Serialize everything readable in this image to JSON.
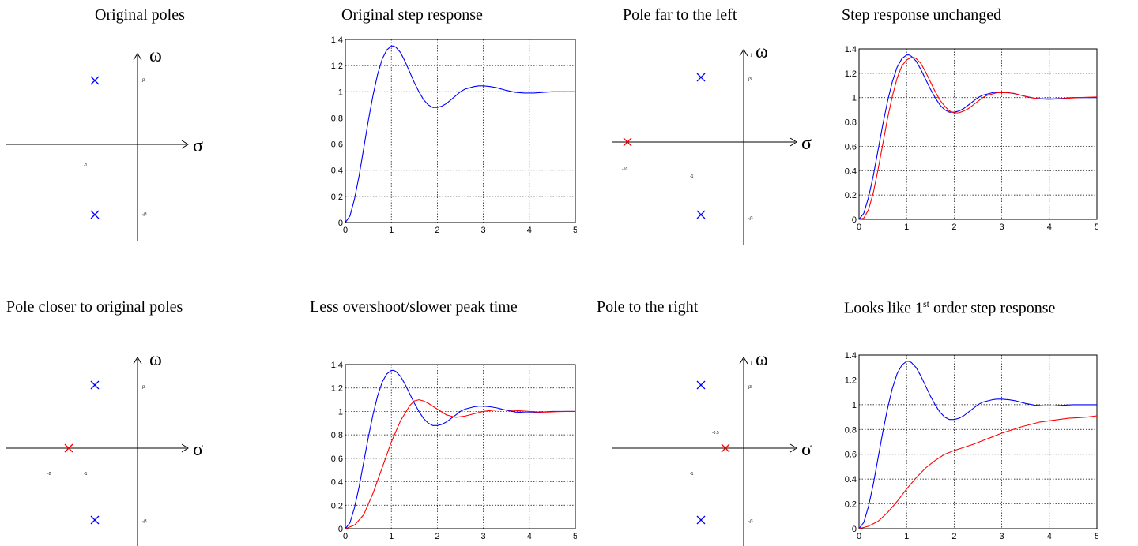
{
  "titles": {
    "t1": "Original poles",
    "t2": "Original step response",
    "t3": "Pole far to the left",
    "t4": "Step response unchanged",
    "t5": "Pole closer to original poles",
    "t6": "Less overshoot/slower peak time",
    "t7": "Pole to the right",
    "t8_pre": "Looks like 1",
    "t8_sup": "st",
    "t8_post": " order step response"
  },
  "colors": {
    "blue": "#0000ff",
    "red": "#ff0000",
    "axis": "#000000",
    "grid": "#000000"
  },
  "pole_plots": [
    {
      "id": "pp1",
      "sigma_symbol": "σ",
      "omega_symbol": "ω",
      "omega_tick": "j",
      "labels": [
        "j3",
        "-j3",
        "-1"
      ],
      "poles": [
        {
          "re": -1,
          "im": 3,
          "color": "blue"
        },
        {
          "re": -1,
          "im": -3,
          "color": "blue"
        }
      ]
    },
    {
      "id": "pp2",
      "sigma_symbol": "σ",
      "omega_symbol": "ω",
      "omega_tick": "j",
      "labels": [
        "j3",
        "-j3",
        "-1",
        "-10"
      ],
      "poles": [
        {
          "re": -1,
          "im": 3,
          "color": "blue"
        },
        {
          "re": -1,
          "im": -3,
          "color": "blue"
        },
        {
          "re": -10,
          "im": 0,
          "color": "red"
        }
      ]
    },
    {
      "id": "pp3",
      "sigma_symbol": "σ",
      "omega_symbol": "ω",
      "omega_tick": "j",
      "labels": [
        "j3",
        "-j3",
        "-1",
        "-2"
      ],
      "poles": [
        {
          "re": -1,
          "im": 3,
          "color": "blue"
        },
        {
          "re": -1,
          "im": -3,
          "color": "blue"
        },
        {
          "re": -2,
          "im": 0,
          "color": "red"
        }
      ]
    },
    {
      "id": "pp4",
      "sigma_symbol": "σ",
      "omega_symbol": "ω",
      "omega_tick": "j",
      "labels": [
        "j3",
        "-j3",
        "-1",
        "-0.5"
      ],
      "poles": [
        {
          "re": -1,
          "im": 3,
          "color": "blue"
        },
        {
          "re": -1,
          "im": -3,
          "color": "blue"
        },
        {
          "re": -0.5,
          "im": 0,
          "color": "red"
        }
      ]
    }
  ],
  "chart_data": [
    {
      "id": "c1",
      "type": "line",
      "title": "Original step response",
      "xlim": [
        0,
        5
      ],
      "ylim": [
        0,
        1.4
      ],
      "xticks": [
        "0",
        "1",
        "2",
        "3",
        "4",
        "5"
      ],
      "yticks": [
        "0",
        "0.2",
        "0.4",
        "0.6",
        "0.8",
        "1",
        "1.2",
        "1.4"
      ],
      "grid": true,
      "series": [
        {
          "color": "blue",
          "x": [
            0,
            0.1,
            0.2,
            0.3,
            0.4,
            0.5,
            0.6,
            0.7,
            0.8,
            0.9,
            1.0,
            1.05,
            1.1,
            1.2,
            1.3,
            1.4,
            1.5,
            1.6,
            1.7,
            1.8,
            1.9,
            2.0,
            2.1,
            2.2,
            2.3,
            2.4,
            2.5,
            2.6,
            2.7,
            2.8,
            2.9,
            3.0,
            3.15,
            3.3,
            3.5,
            3.7,
            3.9,
            4.1,
            4.3,
            4.5,
            4.7,
            5.0
          ],
          "y": [
            0,
            0.05,
            0.18,
            0.36,
            0.57,
            0.78,
            0.97,
            1.13,
            1.25,
            1.32,
            1.35,
            1.35,
            1.34,
            1.3,
            1.23,
            1.15,
            1.07,
            1.0,
            0.94,
            0.9,
            0.88,
            0.88,
            0.89,
            0.91,
            0.94,
            0.97,
            1.0,
            1.02,
            1.03,
            1.04,
            1.045,
            1.045,
            1.04,
            1.03,
            1.01,
            0.995,
            0.99,
            0.99,
            0.995,
            1.0,
            1.0,
            1.0
          ]
        }
      ]
    },
    {
      "id": "c2",
      "type": "line",
      "title": "Step response unchanged",
      "xlim": [
        0,
        5
      ],
      "ylim": [
        0,
        1.4
      ],
      "xticks": [
        "0",
        "1",
        "2",
        "3",
        "4",
        "5"
      ],
      "yticks": [
        "0",
        "0.2",
        "0.4",
        "0.6",
        "0.8",
        "1",
        "1.2",
        "1.4"
      ],
      "grid": true,
      "series": [
        {
          "color": "blue",
          "x": [
            0,
            0.1,
            0.2,
            0.3,
            0.4,
            0.5,
            0.6,
            0.7,
            0.8,
            0.9,
            1.0,
            1.05,
            1.1,
            1.2,
            1.3,
            1.4,
            1.5,
            1.6,
            1.7,
            1.8,
            1.9,
            2.0,
            2.1,
            2.2,
            2.3,
            2.4,
            2.5,
            2.6,
            2.7,
            2.8,
            2.9,
            3.0,
            3.15,
            3.3,
            3.5,
            3.7,
            3.9,
            4.1,
            4.3,
            4.5,
            4.7,
            5.0
          ],
          "y": [
            0,
            0.05,
            0.18,
            0.36,
            0.57,
            0.78,
            0.97,
            1.13,
            1.25,
            1.32,
            1.35,
            1.35,
            1.34,
            1.3,
            1.23,
            1.15,
            1.07,
            1.0,
            0.94,
            0.9,
            0.88,
            0.88,
            0.89,
            0.91,
            0.94,
            0.97,
            1.0,
            1.02,
            1.03,
            1.04,
            1.045,
            1.045,
            1.04,
            1.03,
            1.01,
            0.995,
            0.99,
            0.99,
            0.995,
            1.0,
            1.0,
            1.0
          ]
        },
        {
          "color": "red",
          "x": [
            0,
            0.1,
            0.2,
            0.3,
            0.4,
            0.5,
            0.6,
            0.7,
            0.8,
            0.9,
            1.0,
            1.1,
            1.15,
            1.2,
            1.3,
            1.4,
            1.5,
            1.6,
            1.7,
            1.8,
            1.9,
            2.0,
            2.1,
            2.2,
            2.3,
            2.4,
            2.5,
            2.6,
            2.7,
            2.8,
            2.9,
            3.0,
            3.1,
            3.25,
            3.4,
            3.6,
            3.8,
            4.0,
            4.2,
            4.4,
            4.6,
            5.0
          ],
          "y": [
            0,
            0.01,
            0.08,
            0.22,
            0.41,
            0.62,
            0.83,
            1.01,
            1.16,
            1.26,
            1.31,
            1.33,
            1.33,
            1.32,
            1.28,
            1.21,
            1.13,
            1.05,
            0.98,
            0.93,
            0.89,
            0.875,
            0.875,
            0.89,
            0.91,
            0.94,
            0.97,
            1.0,
            1.02,
            1.03,
            1.04,
            1.04,
            1.04,
            1.035,
            1.02,
            1.0,
            0.99,
            0.985,
            0.99,
            0.995,
            1.0,
            1.005
          ]
        }
      ]
    },
    {
      "id": "c3",
      "type": "line",
      "title": "Less overshoot/slower peak time",
      "xlim": [
        0,
        5
      ],
      "ylim": [
        0,
        1.4
      ],
      "xticks": [
        "0",
        "1",
        "2",
        "3",
        "4",
        "5"
      ],
      "yticks": [
        "0",
        "0.2",
        "0.4",
        "0.6",
        "0.8",
        "1",
        "1.2",
        "1.4"
      ],
      "grid": true,
      "series": [
        {
          "color": "blue",
          "x": [
            0,
            0.1,
            0.2,
            0.3,
            0.4,
            0.5,
            0.6,
            0.7,
            0.8,
            0.9,
            1.0,
            1.05,
            1.1,
            1.2,
            1.3,
            1.4,
            1.5,
            1.6,
            1.7,
            1.8,
            1.9,
            2.0,
            2.1,
            2.2,
            2.3,
            2.4,
            2.5,
            2.6,
            2.7,
            2.8,
            2.9,
            3.0,
            3.15,
            3.3,
            3.5,
            3.7,
            3.9,
            4.1,
            4.3,
            4.5,
            4.7,
            5.0
          ],
          "y": [
            0,
            0.05,
            0.18,
            0.36,
            0.57,
            0.78,
            0.97,
            1.13,
            1.25,
            1.32,
            1.35,
            1.35,
            1.34,
            1.3,
            1.23,
            1.15,
            1.07,
            1.0,
            0.94,
            0.9,
            0.88,
            0.88,
            0.89,
            0.91,
            0.94,
            0.97,
            1.0,
            1.02,
            1.03,
            1.04,
            1.045,
            1.045,
            1.04,
            1.03,
            1.01,
            0.995,
            0.99,
            0.99,
            0.995,
            1.0,
            1.0,
            1.0
          ]
        },
        {
          "color": "red",
          "x": [
            0,
            0.2,
            0.4,
            0.6,
            0.8,
            1.0,
            1.2,
            1.4,
            1.5,
            1.6,
            1.7,
            1.8,
            2.0,
            2.2,
            2.4,
            2.6,
            2.8,
            3.0,
            3.2,
            3.4,
            3.6,
            3.8,
            4.0,
            4.2,
            4.4,
            4.6,
            4.8,
            5.0
          ],
          "y": [
            0,
            0.03,
            0.12,
            0.3,
            0.52,
            0.74,
            0.92,
            1.05,
            1.09,
            1.1,
            1.09,
            1.07,
            1.02,
            0.97,
            0.95,
            0.96,
            0.98,
            1.0,
            1.01,
            1.015,
            1.01,
            1.005,
            1.0,
            0.995,
            0.995,
            0.998,
            1.0,
            1.0
          ]
        }
      ]
    },
    {
      "id": "c4",
      "type": "line",
      "title": "Looks like 1st order step response",
      "xlim": [
        0,
        5
      ],
      "ylim": [
        0,
        1.4
      ],
      "xticks": [
        "0",
        "1",
        "2",
        "3",
        "4",
        "5"
      ],
      "yticks": [
        "0",
        "0.2",
        "0.4",
        "0.6",
        "0.8",
        "1",
        "1.2",
        "1.4"
      ],
      "grid": true,
      "series": [
        {
          "color": "blue",
          "x": [
            0,
            0.1,
            0.2,
            0.3,
            0.4,
            0.5,
            0.6,
            0.7,
            0.8,
            0.9,
            1.0,
            1.05,
            1.1,
            1.2,
            1.3,
            1.4,
            1.5,
            1.6,
            1.7,
            1.8,
            1.9,
            2.0,
            2.1,
            2.2,
            2.3,
            2.4,
            2.5,
            2.6,
            2.7,
            2.8,
            2.9,
            3.0,
            3.15,
            3.3,
            3.5,
            3.7,
            3.9,
            4.1,
            4.3,
            4.5,
            4.7,
            5.0
          ],
          "y": [
            0,
            0.05,
            0.18,
            0.36,
            0.57,
            0.78,
            0.97,
            1.13,
            1.25,
            1.32,
            1.35,
            1.35,
            1.34,
            1.3,
            1.23,
            1.15,
            1.07,
            1.0,
            0.94,
            0.9,
            0.88,
            0.88,
            0.89,
            0.91,
            0.94,
            0.97,
            1.0,
            1.02,
            1.03,
            1.04,
            1.045,
            1.045,
            1.04,
            1.03,
            1.01,
            0.995,
            0.99,
            0.99,
            0.995,
            1.0,
            1.0,
            1.0
          ]
        },
        {
          "color": "red",
          "x": [
            0,
            0.2,
            0.4,
            0.6,
            0.8,
            1.0,
            1.2,
            1.4,
            1.6,
            1.8,
            2.0,
            2.2,
            2.4,
            2.6,
            2.8,
            3.0,
            3.2,
            3.4,
            3.6,
            3.8,
            4.0,
            4.2,
            4.4,
            4.6,
            4.8,
            5.0
          ],
          "y": [
            0,
            0.02,
            0.06,
            0.13,
            0.22,
            0.32,
            0.41,
            0.49,
            0.55,
            0.6,
            0.63,
            0.655,
            0.68,
            0.71,
            0.74,
            0.77,
            0.795,
            0.82,
            0.84,
            0.86,
            0.87,
            0.88,
            0.89,
            0.895,
            0.9,
            0.91
          ]
        }
      ]
    }
  ]
}
